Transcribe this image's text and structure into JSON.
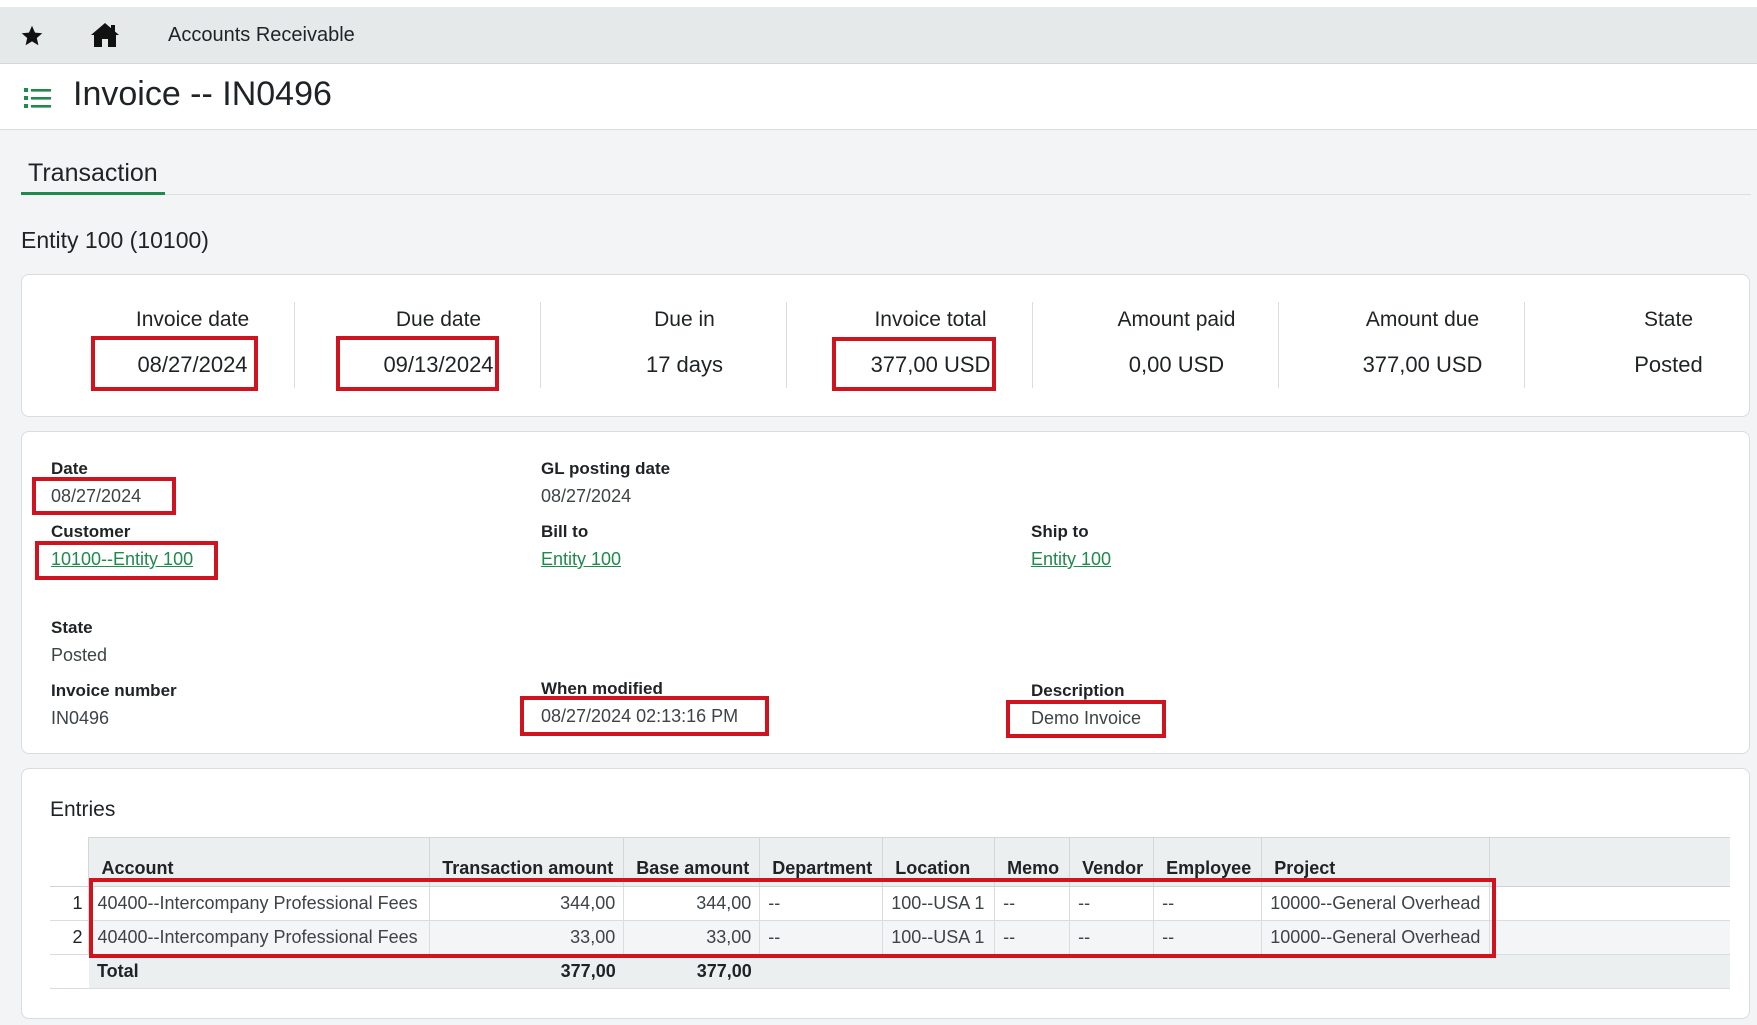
{
  "nav": {
    "title": "Accounts Receivable",
    "star_icon": "star-icon",
    "home_icon": "home-icon"
  },
  "header": {
    "title": "Invoice -- IN0496",
    "menu_icon": "list-icon"
  },
  "tabs": [
    {
      "label": "Transaction",
      "active": true
    }
  ],
  "entity_heading": "Entity 100 (10100)",
  "summary": [
    {
      "label": "Invoice date",
      "value": "08/27/2024"
    },
    {
      "label": "Due date",
      "value": "09/13/2024"
    },
    {
      "label": "Due in",
      "value": "17 days"
    },
    {
      "label": "Invoice total",
      "value": "377,00 USD"
    },
    {
      "label": "Amount paid",
      "value": "0,00 USD"
    },
    {
      "label": "Amount due",
      "value": "377,00 USD"
    },
    {
      "label": "State",
      "value": "Posted"
    }
  ],
  "details": {
    "date": {
      "label": "Date",
      "value": "08/27/2024"
    },
    "gl_posting_date": {
      "label": "GL posting date",
      "value": "08/27/2024"
    },
    "customer": {
      "label": "Customer",
      "value": "10100--Entity 100"
    },
    "bill_to": {
      "label": "Bill to",
      "value": "Entity 100"
    },
    "ship_to": {
      "label": "Ship to",
      "value": "Entity 100"
    },
    "state": {
      "label": "State",
      "value": "Posted"
    },
    "invoice_number": {
      "label": "Invoice number",
      "value": "IN0496"
    },
    "when_modified": {
      "label": "When modified",
      "value": "08/27/2024 02:13:16 PM"
    },
    "description": {
      "label": "Description",
      "value": "Demo Invoice"
    }
  },
  "entries": {
    "title": "Entries",
    "columns": [
      "Account",
      "Transaction amount",
      "Base amount",
      "Department",
      "Location",
      "Memo",
      "Vendor",
      "Employee",
      "Project"
    ],
    "rows": [
      {
        "num": "1",
        "cells": [
          "40400--Intercompany Professional Fees",
          "344,00",
          "344,00",
          "--",
          "100--USA 1",
          "--",
          "--",
          "--",
          "10000--General Overhead"
        ]
      },
      {
        "num": "2",
        "cells": [
          "40400--Intercompany Professional Fees",
          "33,00",
          "33,00",
          "--",
          "100--USA 1",
          "--",
          "--",
          "--",
          "10000--General Overhead"
        ]
      }
    ],
    "total": {
      "label": "Total",
      "transaction_amount": "377,00",
      "base_amount": "377,00"
    }
  },
  "colors": {
    "accent": "#1e8a4c",
    "highlight": "#d0141f"
  }
}
